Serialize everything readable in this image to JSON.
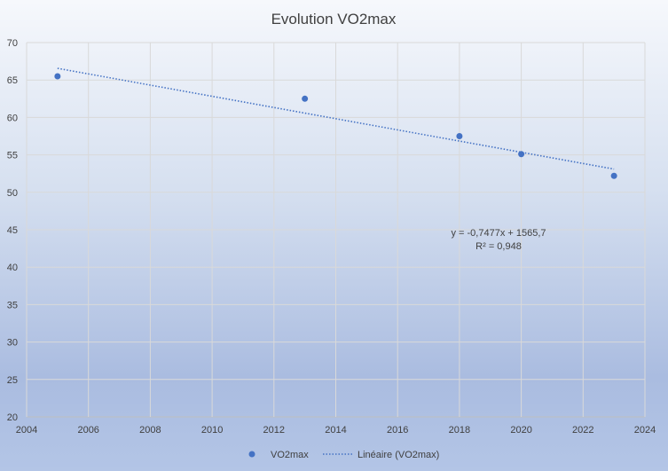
{
  "chart_data": {
    "type": "scatter",
    "title": "Evolution VO2max",
    "xlabel": "",
    "ylabel": "",
    "xlim": [
      2004,
      2024
    ],
    "ylim": [
      20,
      70
    ],
    "xticks": [
      2004,
      2006,
      2008,
      2010,
      2012,
      2014,
      2016,
      2018,
      2020,
      2022,
      2024
    ],
    "yticks": [
      20,
      25,
      30,
      35,
      40,
      45,
      50,
      55,
      60,
      65,
      70
    ],
    "grid": true,
    "legend_position": "bottom",
    "series": [
      {
        "name": "VO2max",
        "color": "#4472c4",
        "points": [
          {
            "x": 2005,
            "y": 65.5
          },
          {
            "x": 2013,
            "y": 62.5
          },
          {
            "x": 2018,
            "y": 57.5
          },
          {
            "x": 2020,
            "y": 55.1
          },
          {
            "x": 2023,
            "y": 52.2
          }
        ]
      }
    ],
    "trendline": {
      "name": "Linéaire (VO2max)",
      "type": "linear",
      "slope": -0.7477,
      "intercept": 1565.7,
      "x_range": [
        2005,
        2023
      ],
      "color": "#4472c4",
      "equation_label": "y = -0,7477x + 1565,7",
      "r2_label": "R² = 0,948"
    }
  }
}
